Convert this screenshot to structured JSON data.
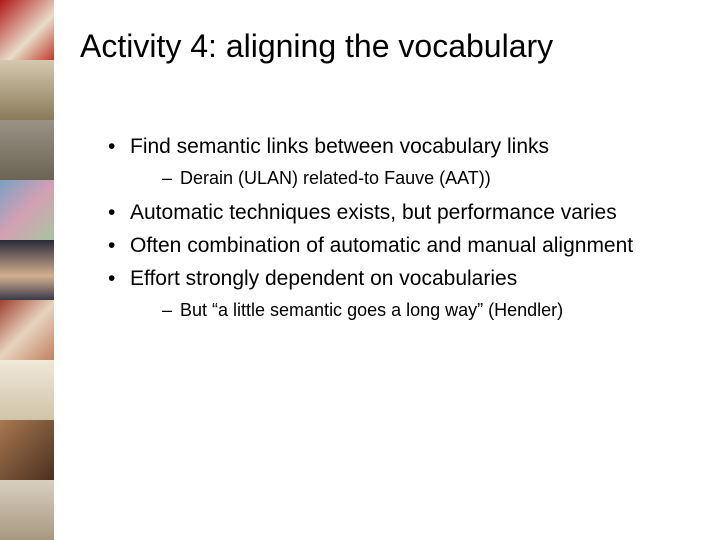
{
  "title": "Activity 4: aligning the vocabulary",
  "bullets": [
    {
      "text": "Find semantic links between vocabulary links",
      "sub": [
        "Derain (ULAN) related-to Fauve (AAT))"
      ]
    },
    {
      "text": "Automatic techniques exists, but performance varies"
    },
    {
      "text": "Often combination of automatic and manual alignment"
    },
    {
      "text": "Effort strongly dependent on vocabularies",
      "sub": [
        "But “a little semantic goes a long way” (Hendler)"
      ]
    }
  ],
  "sidebar_thumbs": [
    {
      "bg": "linear-gradient(135deg,#b01818 0%,#e8dcc8 60%,#c0392b 100%)"
    },
    {
      "bg": "linear-gradient(180deg,#d4c9b0 0%,#8a7a5a 100%)"
    },
    {
      "bg": "linear-gradient(180deg,#9a9284 0%,#6b6354 100%)"
    },
    {
      "bg": "linear-gradient(135deg,#7aa0c4 0%,#d4a0b4 50%,#a8c4a0 100%)"
    },
    {
      "bg": "linear-gradient(180deg,#2a2a3a 0%,#d4b090 60%,#3a3a4a 100%)"
    },
    {
      "bg": "linear-gradient(135deg,#a04030 0%,#e8d4c0 50%,#c08060 100%)"
    },
    {
      "bg": "linear-gradient(180deg,#f0e8d8 0%,#d0c4a8 100%)"
    },
    {
      "bg": "linear-gradient(135deg,#a87850 0%,#4a3020 100%)"
    },
    {
      "bg": "linear-gradient(180deg,#d8d0c0 0%,#a89880 100%)"
    }
  ]
}
